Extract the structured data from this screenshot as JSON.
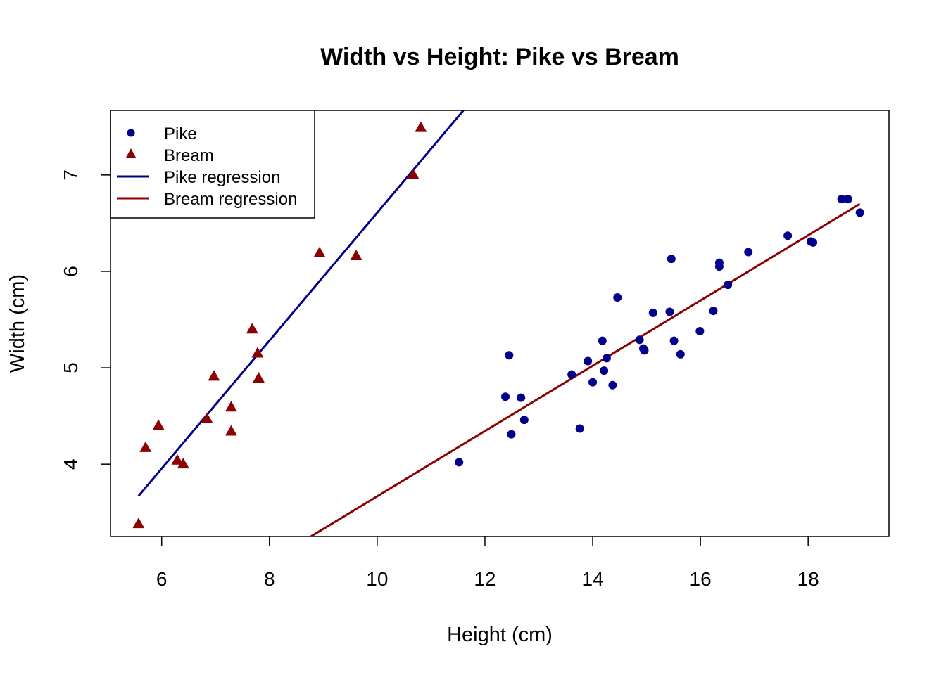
{
  "chart_data": {
    "type": "scatter",
    "title": "Width vs Height: Pike vs Bream",
    "xlabel": "Height (cm)",
    "ylabel": "Width (cm)",
    "xlim": [
      5.05,
      19.5
    ],
    "ylim": [
      3.25,
      7.67
    ],
    "x_ticks": [
      6,
      8,
      10,
      12,
      14,
      16,
      18
    ],
    "y_ticks": [
      4,
      5,
      6,
      7
    ],
    "grid": false,
    "legend_position": "top-left",
    "colors": {
      "pike": "#00008B",
      "bream": "#8B0000"
    },
    "series": [
      {
        "name": "Pike",
        "marker": "circle",
        "x": [
          11.52,
          12.38,
          12.45,
          12.49,
          12.67,
          12.73,
          13.61,
          13.76,
          13.91,
          14.0,
          14.18,
          14.21,
          14.26,
          14.37,
          14.46,
          14.87,
          14.94,
          14.96,
          15.12,
          15.43,
          15.46,
          15.51,
          15.63,
          15.99,
          16.24,
          16.35,
          16.35,
          16.51,
          16.89,
          17.62,
          18.05,
          18.09,
          18.62,
          18.74,
          18.96
        ],
        "y": [
          4.02,
          4.7,
          5.13,
          4.31,
          4.69,
          4.46,
          4.93,
          4.37,
          5.07,
          4.85,
          5.28,
          4.97,
          5.1,
          4.82,
          5.73,
          5.29,
          5.2,
          5.18,
          5.57,
          5.58,
          6.13,
          5.28,
          5.14,
          5.38,
          5.59,
          6.09,
          6.05,
          5.86,
          6.2,
          6.37,
          6.31,
          6.3,
          6.75,
          6.75,
          6.61
        ]
      },
      {
        "name": "Bream",
        "marker": "triangle",
        "x": [
          5.57,
          5.7,
          5.94,
          6.29,
          6.4,
          6.84,
          6.97,
          7.29,
          7.29,
          7.68,
          7.78,
          7.8,
          8.93,
          9.61,
          10.67,
          10.81
        ],
        "y": [
          3.38,
          4.17,
          4.4,
          4.04,
          4.0,
          4.47,
          4.91,
          4.59,
          4.34,
          5.4,
          5.15,
          4.89,
          6.19,
          6.16,
          7.0,
          7.49
        ]
      }
    ],
    "regression_lines": [
      {
        "name": "Pike regression",
        "x": [
          5.57,
          11.6
        ],
        "y": [
          3.67,
          7.67
        ]
      },
      {
        "name": "Bream regression",
        "x": [
          8.65,
          18.96
        ],
        "y": [
          3.21,
          6.7
        ]
      }
    ]
  }
}
